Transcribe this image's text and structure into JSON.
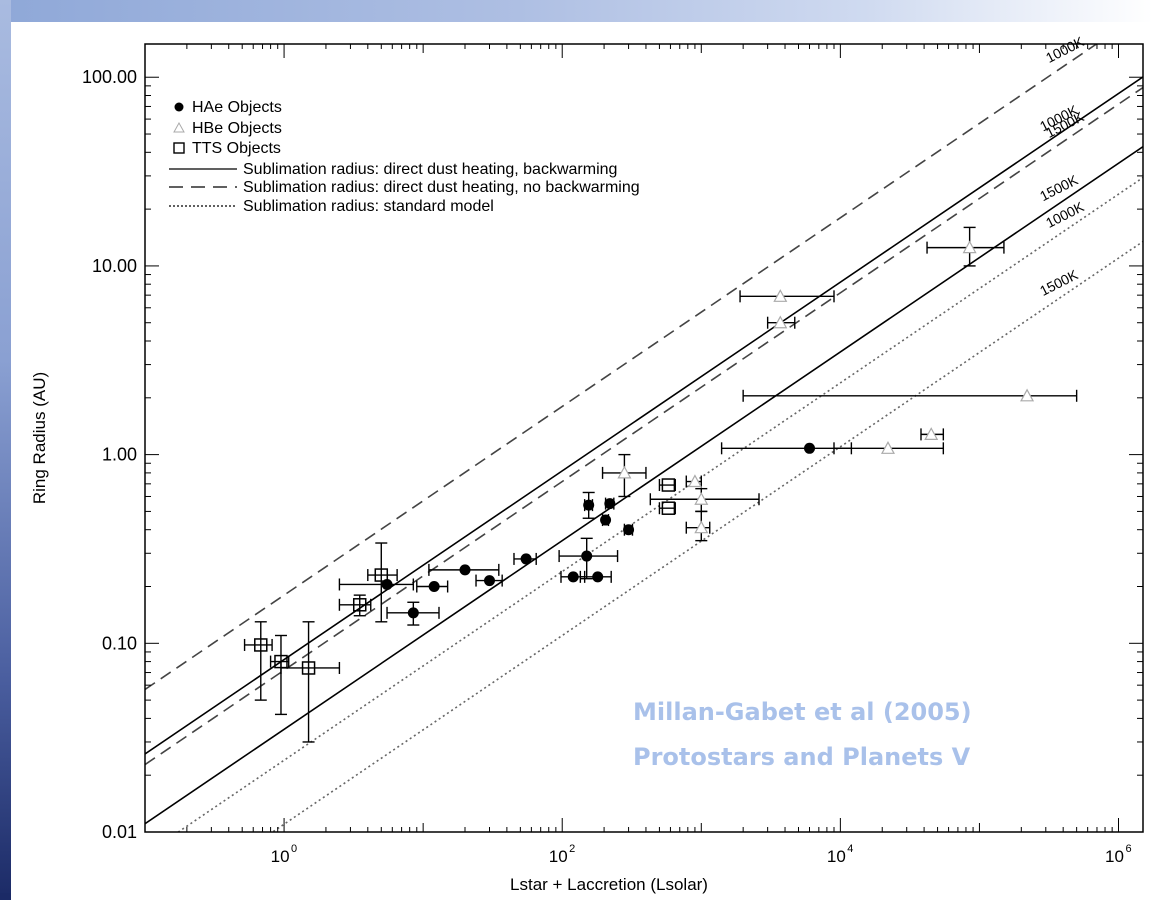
{
  "credit": {
    "line1": "Millan-Gabet et al (2005)",
    "line2": "Protostars and Planets V"
  },
  "colors": {
    "frame_blue": "#8fa8d8",
    "frame_dark": "#1b2a66",
    "credit_text": "#a9c1ea",
    "ink": "#000000",
    "dashed_line": "#444444",
    "dotted_line": "#666666"
  },
  "chart_data": {
    "type": "scatter",
    "xlabel": "Lstar + Laccretion (Lsolar)",
    "ylabel": "Ring Radius (AU)",
    "xscale": "log",
    "yscale": "log",
    "xlim": [
      0.1,
      1500000
    ],
    "ylim": [
      0.01,
      150
    ],
    "x_ticks": [
      {
        "value": 1,
        "label": "10",
        "exp": "0"
      },
      {
        "value": 100,
        "label": "10",
        "exp": "2"
      },
      {
        "value": 10000,
        "label": "10",
        "exp": "4"
      },
      {
        "value": 1000000,
        "label": "10",
        "exp": "6"
      }
    ],
    "y_ticks": [
      {
        "value": 0.01,
        "label": "0.01"
      },
      {
        "value": 0.1,
        "label": "0.10"
      },
      {
        "value": 1,
        "label": "1.00"
      },
      {
        "value": 10,
        "label": "10.00"
      },
      {
        "value": 100,
        "label": "100.00"
      }
    ],
    "grid": false,
    "legend_position": "top-left",
    "legend": [
      {
        "label": "HAe Objects",
        "marker": "filled-circle"
      },
      {
        "label": "HBe Objects",
        "marker": "triangle"
      },
      {
        "label": "TTS Objects",
        "marker": "open-square"
      },
      {
        "label": "Sublimation radius: direct dust heating, backwarming",
        "line": "solid"
      },
      {
        "label": "Sublimation radius: direct dust heating, no backwarming",
        "line": "dashed"
      },
      {
        "label": "Sublimation radius: standard model",
        "line": "dotted"
      }
    ],
    "model_lines": [
      {
        "style": "dashed",
        "label": "1000K",
        "y_at_x1": 0.18
      },
      {
        "style": "solid",
        "label": "1000K",
        "y_at_x1": 0.082
      },
      {
        "style": "dashed",
        "label": "1500K",
        "y_at_x1": 0.072
      },
      {
        "style": "solid",
        "label": "1500K",
        "y_at_x1": 0.035
      },
      {
        "style": "dotted",
        "label": "1000K",
        "y_at_x1": 0.024
      },
      {
        "style": "dotted",
        "label": "1500K",
        "y_at_x1": 0.011
      }
    ],
    "series": [
      {
        "name": "HAe Objects",
        "marker": "filled-circle",
        "points": [
          {
            "x": 5.5,
            "y": 0.205,
            "xerr": [
              2.5,
              8.5
            ]
          },
          {
            "x": 8.5,
            "y": 0.145,
            "xerr": [
              5.5,
              13
            ],
            "yerr": [
              0.125,
              0.165
            ]
          },
          {
            "x": 12,
            "y": 0.2,
            "xerr": [
              9,
              15
            ]
          },
          {
            "x": 20,
            "y": 0.245,
            "xerr": [
              11,
              35
            ]
          },
          {
            "x": 30,
            "y": 0.215,
            "xerr": [
              24,
              37
            ]
          },
          {
            "x": 55,
            "y": 0.28,
            "xerr": [
              45,
              65
            ]
          },
          {
            "x": 120,
            "y": 0.225,
            "xerr": [
              98,
              145
            ]
          },
          {
            "x": 150,
            "y": 0.29,
            "xerr": [
              95,
              250
            ],
            "yerr": [
              0.22,
              0.36
            ]
          },
          {
            "x": 155,
            "y": 0.54,
            "xerr": [
              145,
              165
            ],
            "yerr": [
              0.46,
              0.63
            ]
          },
          {
            "x": 180,
            "y": 0.225,
            "xerr": [
              135,
              225
            ]
          },
          {
            "x": 220,
            "y": 0.55,
            "xerr": [
              205,
              235
            ]
          },
          {
            "x": 205,
            "y": 0.45,
            "xerr": [
              195,
              215
            ]
          },
          {
            "x": 300,
            "y": 0.4,
            "xerr": [
              280,
              320
            ]
          },
          {
            "x": 6000,
            "y": 1.08,
            "xerr": [
              1400,
              12000
            ]
          }
        ]
      },
      {
        "name": "HBe Objects",
        "marker": "triangle",
        "points": [
          {
            "x": 280,
            "y": 0.8,
            "xerr": [
              195,
              400
            ],
            "yerr": [
              0.6,
              1.0
            ]
          },
          {
            "x": 900,
            "y": 0.72,
            "xerr": [
              780,
              1000
            ]
          },
          {
            "x": 1000,
            "y": 0.58,
            "xerr": [
              430,
              2600
            ],
            "yerr": [
              0.5,
              0.66
            ]
          },
          {
            "x": 1000,
            "y": 0.41,
            "xerr": [
              780,
              1150
            ],
            "yerr": [
              0.35,
              0.5
            ]
          },
          {
            "x": 3700,
            "y": 6.9,
            "xerr": [
              1900,
              9000
            ]
          },
          {
            "x": 3700,
            "y": 5.0,
            "xerr": [
              3000,
              4700
            ]
          },
          {
            "x": 22000,
            "y": 1.08,
            "xerr": [
              9000,
              55000
            ]
          },
          {
            "x": 45000,
            "y": 1.28,
            "xerr": [
              38000,
              55000
            ]
          },
          {
            "x": 85000,
            "y": 12.5,
            "xerr": [
              42000,
              150000
            ],
            "yerr": [
              10,
              16
            ]
          },
          {
            "x": 220000,
            "y": 2.05,
            "xerr": [
              2000,
              500000
            ]
          }
        ]
      },
      {
        "name": "TTS Objects",
        "marker": "open-square",
        "points": [
          {
            "x": 0.68,
            "y": 0.098,
            "xerr": [
              0.52,
              0.82
            ],
            "yerr": [
              0.05,
              0.13
            ]
          },
          {
            "x": 0.95,
            "y": 0.08,
            "xerr": [
              0.8,
              1.08
            ],
            "yerr": [
              0.042,
              0.11
            ]
          },
          {
            "x": 1.5,
            "y": 0.074,
            "xerr": [
              0.95,
              2.5
            ],
            "yerr": [
              0.03,
              0.13
            ]
          },
          {
            "x": 3.5,
            "y": 0.16,
            "xerr": [
              2.5,
              4.2
            ],
            "yerr": [
              0.14,
              0.18
            ]
          },
          {
            "x": 5.0,
            "y": 0.23,
            "xerr": [
              4.0,
              6.5
            ],
            "yerr": [
              0.13,
              0.34
            ]
          },
          {
            "x": 580,
            "y": 0.69,
            "xerr": [
              500,
              650
            ]
          },
          {
            "x": 580,
            "y": 0.52,
            "xerr": [
              500,
              650
            ]
          }
        ]
      }
    ]
  }
}
